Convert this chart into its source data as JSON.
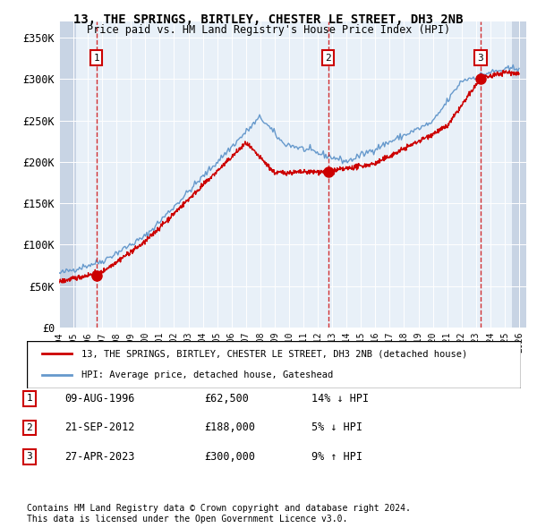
{
  "title": "13, THE SPRINGS, BIRTLEY, CHESTER LE STREET, DH3 2NB",
  "subtitle": "Price paid vs. HM Land Registry's House Price Index (HPI)",
  "ylabel": "",
  "xlim_start": 1994.0,
  "xlim_end": 2026.5,
  "ylim_min": 0,
  "ylim_max": 370000,
  "yticks": [
    0,
    50000,
    100000,
    150000,
    200000,
    250000,
    300000,
    350000
  ],
  "ytick_labels": [
    "£0",
    "£50K",
    "£100K",
    "£150K",
    "£200K",
    "£250K",
    "£300K",
    "£350K"
  ],
  "sales": [
    {
      "year": 1996.6,
      "price": 62500,
      "label": "1"
    },
    {
      "year": 2012.72,
      "price": 188000,
      "label": "2"
    },
    {
      "year": 2023.32,
      "price": 300000,
      "label": "3"
    }
  ],
  "sale_color": "#cc0000",
  "hpi_color": "#6699cc",
  "legend_entries": [
    "13, THE SPRINGS, BIRTLEY, CHESTER LE STREET, DH3 2NB (detached house)",
    "HPI: Average price, detached house, Gateshead"
  ],
  "table_rows": [
    {
      "num": "1",
      "date": "09-AUG-1996",
      "price": "£62,500",
      "hpi": "14% ↓ HPI"
    },
    {
      "num": "2",
      "date": "21-SEP-2012",
      "price": "£188,000",
      "hpi": "5% ↓ HPI"
    },
    {
      "num": "3",
      "date": "27-APR-2023",
      "price": "£300,000",
      "hpi": "9% ↑ HPI"
    }
  ],
  "footnote1": "Contains HM Land Registry data © Crown copyright and database right 2024.",
  "footnote2": "This data is licensed under the Open Government Licence v3.0.",
  "background_color": "#e8f0f8",
  "hatch_color": "#c8d4e4",
  "grid_color": "#ffffff",
  "sale_dot_color": "#cc0000",
  "vline_color": "#cc0000"
}
